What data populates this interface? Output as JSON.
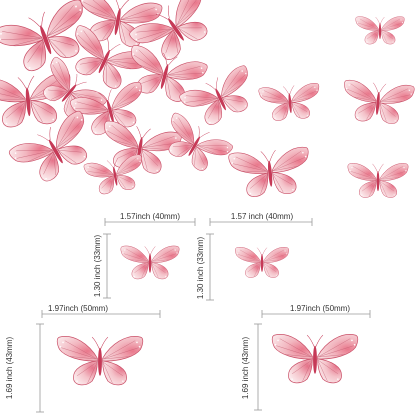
{
  "colors": {
    "wing_light": "#f8dde0",
    "wing_mid": "#efb3bc",
    "wing_dark": "#d9586f",
    "vein": "#b8485f",
    "body": "#c63a57",
    "dim_line": "#9a9a9a",
    "dim_text": "#333333"
  },
  "dimensions": {
    "small_left_width": "1.57inch (40mm)",
    "small_right_width": "1.57 inch (40mm)",
    "small_left_height": "1.30 inch (33mm)",
    "small_right_height": "1.30 inch (33mm)",
    "large_left_width": "1.97inch (50mm)",
    "large_right_width": "1.97inch (50mm)",
    "large_left_height": "1.69 inch (43mm)",
    "large_right_height": "1.69 inch (43mm)"
  }
}
